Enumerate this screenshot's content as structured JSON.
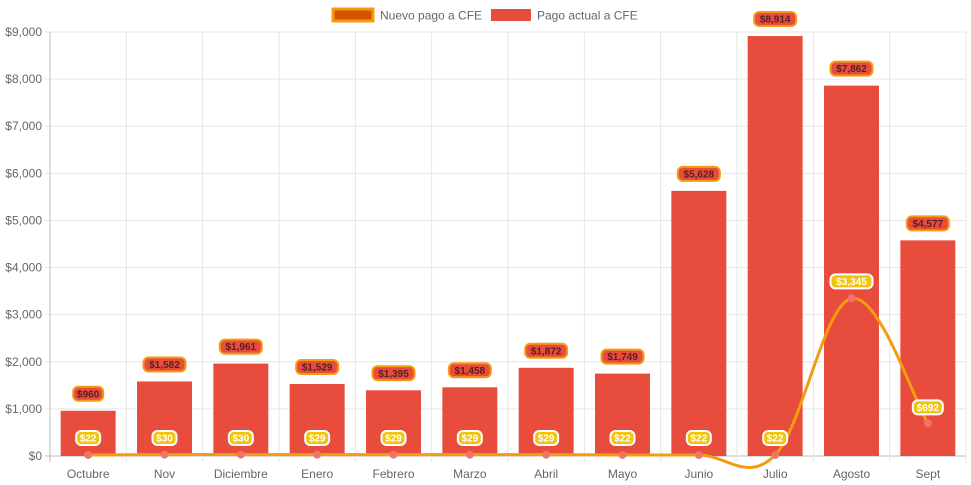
{
  "legend": {
    "items": [
      {
        "label": "Nuevo pago a CFE",
        "color": "#d35400",
        "border": "#f39c12"
      },
      {
        "label": "Pago actual a CFE",
        "color": "#e74c3c",
        "border": "#e74c3c"
      }
    ]
  },
  "chart_data": {
    "type": "bar",
    "categories": [
      "Octubre",
      "Nov",
      "Diciembre",
      "Enero",
      "Febrero",
      "Marzo",
      "Abril",
      "Mayo",
      "Junio",
      "Julio",
      "Agosto",
      "Sept"
    ],
    "series": [
      {
        "name": "Pago actual a CFE",
        "type": "bar",
        "color": "#e74c3c",
        "values": [
          960,
          1582,
          1961,
          1529,
          1395,
          1458,
          1872,
          1749,
          5628,
          8914,
          7862,
          4577
        ],
        "labels": [
          "$960",
          "$1,582",
          "$1,961",
          "$1,529",
          "$1,395",
          "$1,458",
          "$1,872",
          "$1,749",
          "$5,628",
          "$8,914",
          "$7,862",
          "$4,577"
        ]
      },
      {
        "name": "Nuevo pago a CFE",
        "type": "line",
        "color": "#f39c12",
        "point_color": "#f1736a",
        "values": [
          22,
          30,
          30,
          29,
          29,
          29,
          29,
          22,
          22,
          22,
          3345,
          692
        ],
        "labels": [
          "$22",
          "$30",
          "$30",
          "$29",
          "$29",
          "$29",
          "$29",
          "$22",
          "$22",
          "$22",
          "$3,345",
          "$692"
        ]
      }
    ],
    "y_ticks": [
      "$0",
      "$1,000",
      "$2,000",
      "$3,000",
      "$4,000",
      "$5,000",
      "$6,000",
      "$7,000",
      "$8,000",
      "$9,000"
    ],
    "ylim": [
      0,
      9000
    ],
    "grid": true,
    "legend_position": "top"
  }
}
